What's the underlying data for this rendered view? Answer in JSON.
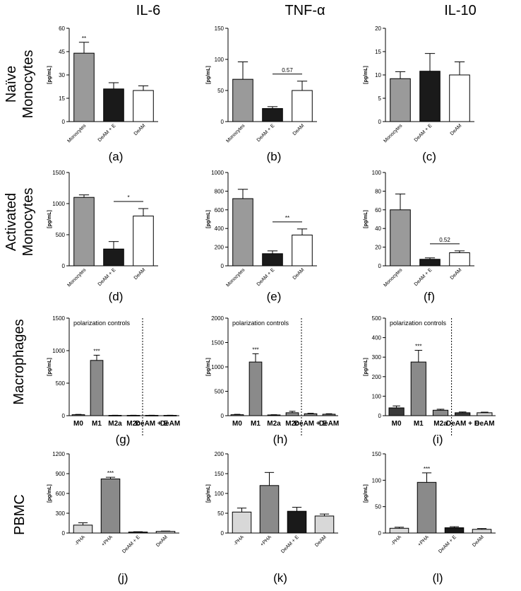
{
  "column_titles": [
    "IL-6",
    "TNF-α",
    "IL-10"
  ],
  "row_labels": [
    [
      "Naïve",
      "Monocytes"
    ],
    [
      "Activated",
      "Monocytes"
    ],
    [
      "Macrophages"
    ],
    [
      "PBMC"
    ]
  ],
  "colors": {
    "monocytes": "#9a9a9a",
    "deam_e": "#1a1a1a",
    "deam": "#ffffff",
    "light_gray": "#d8d8d8",
    "mid_gray": "#8a8a8a",
    "dark_gray": "#3a3a3a"
  },
  "chart_data": [
    {
      "id": "a",
      "caption": "(a)",
      "type": "bar",
      "ylabel": "[pg/mL]",
      "ylim": [
        0,
        60
      ],
      "yticks": [
        0,
        15,
        30,
        45,
        60
      ],
      "tick_labels_rotated": true,
      "categories": [
        "Monocytes",
        "DeAM + E",
        "DeAM"
      ],
      "values": [
        44,
        21,
        20
      ],
      "errors": [
        7,
        4,
        3
      ],
      "fills": [
        "monocytes",
        "deam_e",
        "deam"
      ],
      "marks": [
        {
          "bar": 0,
          "text": "**"
        }
      ],
      "brackets": []
    },
    {
      "id": "b",
      "caption": "(b)",
      "type": "bar",
      "ylabel": "[pg/mL]",
      "ylim": [
        0,
        150
      ],
      "yticks": [
        0,
        50,
        100,
        150
      ],
      "tick_labels_rotated": true,
      "categories": [
        "Monocytes",
        "DeAM + E",
        "DeAM"
      ],
      "values": [
        68,
        21,
        50
      ],
      "errors": [
        28,
        3,
        15
      ],
      "fills": [
        "monocytes",
        "deam_e",
        "deam"
      ],
      "marks": [],
      "brackets": [
        {
          "from": 1,
          "to": 2,
          "text": "0.57"
        }
      ]
    },
    {
      "id": "c",
      "caption": "(c)",
      "type": "bar",
      "ylabel": "[pg/mL]",
      "ylim": [
        0,
        20
      ],
      "yticks": [
        0,
        5,
        10,
        15,
        20
      ],
      "tick_labels_rotated": true,
      "categories": [
        "Monocytes",
        "DeAM + E",
        "DeAM"
      ],
      "values": [
        9.2,
        10.8,
        10
      ],
      "errors": [
        1.5,
        3.8,
        2.8
      ],
      "fills": [
        "monocytes",
        "deam_e",
        "deam"
      ],
      "marks": [],
      "brackets": []
    },
    {
      "id": "d",
      "caption": "(d)",
      "type": "bar",
      "ylabel": "[pg/mL]",
      "ylim": [
        0,
        1500
      ],
      "yticks": [
        0,
        500,
        1000,
        1500
      ],
      "tick_labels_rotated": true,
      "categories": [
        "Monocytes",
        "DeAM + E",
        "DeAM"
      ],
      "values": [
        1100,
        270,
        800
      ],
      "errors": [
        40,
        120,
        120
      ],
      "fills": [
        "monocytes",
        "deam_e",
        "deam"
      ],
      "marks": [],
      "brackets": [
        {
          "from": 1,
          "to": 2,
          "text": "*"
        }
      ]
    },
    {
      "id": "e",
      "caption": "(e)",
      "type": "bar",
      "ylabel": "[pg/mL]",
      "ylim": [
        0,
        1000
      ],
      "yticks": [
        0,
        200,
        400,
        600,
        800,
        1000
      ],
      "tick_labels_rotated": true,
      "categories": [
        "Monocytes",
        "DeAM + E",
        "DeAM"
      ],
      "values": [
        720,
        130,
        330
      ],
      "errors": [
        100,
        30,
        65
      ],
      "fills": [
        "monocytes",
        "deam_e",
        "deam"
      ],
      "marks": [],
      "brackets": [
        {
          "from": 1,
          "to": 2,
          "text": "**"
        }
      ]
    },
    {
      "id": "f",
      "caption": "(f)",
      "type": "bar",
      "ylabel": "[pg/mL]",
      "ylim": [
        0,
        100
      ],
      "yticks": [
        0,
        20,
        40,
        60,
        80,
        100
      ],
      "tick_labels_rotated": true,
      "categories": [
        "Monocytes",
        "DeAM + E",
        "DeAM"
      ],
      "values": [
        60,
        7,
        14
      ],
      "errors": [
        17,
        1.5,
        2
      ],
      "fills": [
        "monocytes",
        "deam_e",
        "deam"
      ],
      "marks": [],
      "brackets": [
        {
          "from": 1,
          "to": 2,
          "text": "0.52"
        }
      ]
    },
    {
      "id": "g",
      "caption": "(g)",
      "type": "bar",
      "ylabel": "[pg/mL]",
      "ylim": [
        0,
        1500
      ],
      "yticks": [
        0,
        500,
        1000,
        1500
      ],
      "tick_labels_rotated": false,
      "categories": [
        "M0",
        "M1",
        "M2a",
        "M2c",
        "DeAM + E",
        "DeAM"
      ],
      "values": [
        15,
        850,
        5,
        5,
        5,
        5
      ],
      "errors": [
        5,
        80,
        2,
        2,
        2,
        2
      ],
      "fills": [
        "mid_gray",
        "mid_gray",
        "mid_gray",
        "mid_gray",
        "mid_gray",
        "mid_gray"
      ],
      "annotation": "polarization controls",
      "divider_after": 3,
      "marks": [
        {
          "bar": 1,
          "text": "***"
        }
      ],
      "brackets": []
    },
    {
      "id": "h",
      "caption": "(h)",
      "type": "bar",
      "ylabel": "[pg/mL]",
      "ylim": [
        0,
        2000
      ],
      "yticks": [
        0,
        500,
        1000,
        1500,
        2000
      ],
      "tick_labels_rotated": false,
      "categories": [
        "M0",
        "M1",
        "M2a",
        "M2c",
        "DeAM + E",
        "DeAM"
      ],
      "values": [
        20,
        1100,
        15,
        60,
        40,
        30
      ],
      "errors": [
        8,
        170,
        5,
        30,
        10,
        10
      ],
      "fills": [
        "mid_gray",
        "mid_gray",
        "mid_gray",
        "mid_gray",
        "mid_gray",
        "mid_gray"
      ],
      "annotation": "polarization controls",
      "divider_after": 3,
      "marks": [
        {
          "bar": 1,
          "text": "***"
        }
      ],
      "brackets": []
    },
    {
      "id": "i",
      "caption": "(i)",
      "type": "bar",
      "ylabel": "[pg/mL]",
      "ylim": [
        0,
        500
      ],
      "yticks": [
        0,
        100,
        200,
        300,
        400,
        500
      ],
      "tick_labels_rotated": false,
      "categories": [
        "M0",
        "M1",
        "M2a",
        "DeAM + E",
        "DeAM"
      ],
      "values": [
        40,
        275,
        28,
        15,
        15
      ],
      "errors": [
        10,
        60,
        5,
        4,
        3
      ],
      "fills": [
        "dark_gray",
        "mid_gray",
        "mid_gray",
        "dark_gray",
        "light_gray"
      ],
      "annotation": "polarization controls",
      "divider_after": 2,
      "marks": [
        {
          "bar": 1,
          "text": "***"
        }
      ],
      "brackets": []
    },
    {
      "id": "j",
      "caption": "(j)",
      "type": "bar",
      "ylabel": "[pg/mL]",
      "ylim": [
        0,
        1200
      ],
      "yticks": [
        0,
        300,
        600,
        900,
        1200
      ],
      "tick_labels_rotated": true,
      "categories": [
        "-PHA",
        "+PHA",
        "DeAM + E",
        "DeAM"
      ],
      "values": [
        120,
        820,
        15,
        25
      ],
      "errors": [
        35,
        25,
        5,
        5
      ],
      "fills": [
        "light_gray",
        "mid_gray",
        "dark_gray",
        "light_gray"
      ],
      "marks": [
        {
          "bar": 1,
          "text": "***"
        }
      ],
      "brackets": []
    },
    {
      "id": "k",
      "caption": "(k)",
      "type": "bar",
      "ylabel": "[pg/mL]",
      "ylim": [
        0,
        200
      ],
      "yticks": [
        0,
        50,
        100,
        150,
        200
      ],
      "tick_labels_rotated": true,
      "categories": [
        "-PHA",
        "+PHA",
        "DeAM + E",
        "DeAM"
      ],
      "values": [
        53,
        120,
        55,
        43
      ],
      "errors": [
        10,
        33,
        10,
        5
      ],
      "fills": [
        "light_gray",
        "mid_gray",
        "deam_e",
        "light_gray"
      ],
      "marks": [],
      "brackets": []
    },
    {
      "id": "l",
      "caption": "(l)",
      "type": "bar",
      "ylabel": "[pg/mL]",
      "ylim": [
        0,
        150
      ],
      "yticks": [
        0,
        50,
        100,
        150
      ],
      "tick_labels_rotated": true,
      "categories": [
        "-PHA",
        "+PHA",
        "DeAM + E",
        "DeAM"
      ],
      "values": [
        9,
        96,
        10,
        7
      ],
      "errors": [
        2,
        18,
        2,
        1.5
      ],
      "fills": [
        "light_gray",
        "mid_gray",
        "deam_e",
        "light_gray"
      ],
      "marks": [
        {
          "bar": 1,
          "text": "***"
        }
      ],
      "brackets": []
    }
  ]
}
